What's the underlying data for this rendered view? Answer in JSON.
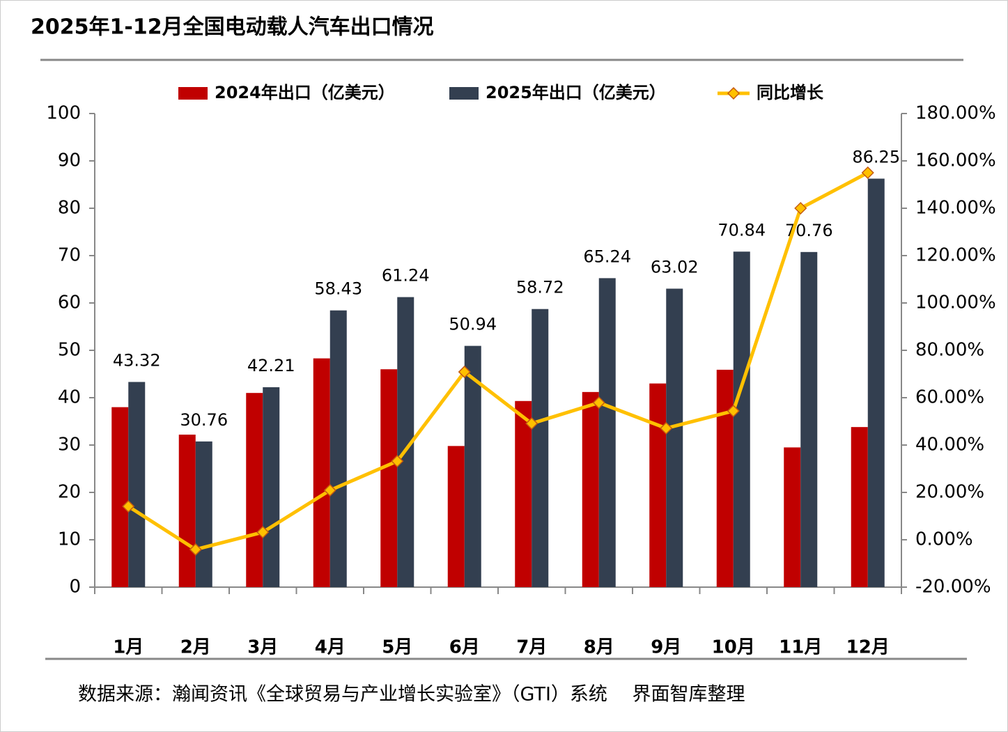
{
  "chart_data": {
    "type": "bar_line",
    "title": "2025年1-12月全国电动载人汽车出口情况",
    "source": "数据来源：瀚闻资讯《全球贸易与产业增长实验室》（GTI）系统　 界面智库整理",
    "categories": [
      "1月",
      "2月",
      "3月",
      "4月",
      "5月",
      "6月",
      "7月",
      "8月",
      "9月",
      "10月",
      "11月",
      "12月"
    ],
    "series": [
      {
        "name": "2024年出口（亿美元）",
        "type": "bar",
        "color": "#c00000",
        "values": [
          38,
          32.2,
          41,
          48.3,
          46,
          29.8,
          39.3,
          41.2,
          43,
          45.9,
          29.5,
          33.8
        ]
      },
      {
        "name": "2025年出口（亿美元）",
        "type": "bar",
        "color": "#333f50",
        "data_labels": true,
        "values": [
          43.32,
          30.76,
          42.21,
          58.43,
          61.24,
          50.94,
          58.72,
          65.24,
          63.02,
          70.84,
          70.76,
          86.25
        ]
      },
      {
        "name": "同比增长",
        "type": "line",
        "axis": "y2",
        "color": "#ffc000",
        "values": [
          14.1,
          -4.1,
          3.2,
          20.9,
          33.2,
          70.9,
          49.1,
          57.9,
          47.1,
          54.4,
          140,
          155
        ]
      }
    ],
    "ylim": [
      0,
      100
    ],
    "yticks": [
      0,
      10,
      20,
      30,
      40,
      50,
      60,
      70,
      80,
      90,
      100
    ],
    "y2lim": [
      -20,
      180
    ],
    "y2ticks": [
      {
        "value": -20,
        "label": "-20.00%"
      },
      {
        "value": 0,
        "label": "0.00%"
      },
      {
        "value": 20,
        "label": "20.00%"
      },
      {
        "value": 40,
        "label": "40.00%"
      },
      {
        "value": 60,
        "label": "60.00%"
      },
      {
        "value": 80,
        "label": "80.00%"
      },
      {
        "value": 100,
        "label": "100.00%"
      },
      {
        "value": 120,
        "label": "120.00%"
      },
      {
        "value": 140,
        "label": "140.00%"
      },
      {
        "value": 160,
        "label": "160.00%"
      },
      {
        "value": 180,
        "label": "180.00%"
      }
    ],
    "grid": false
  }
}
